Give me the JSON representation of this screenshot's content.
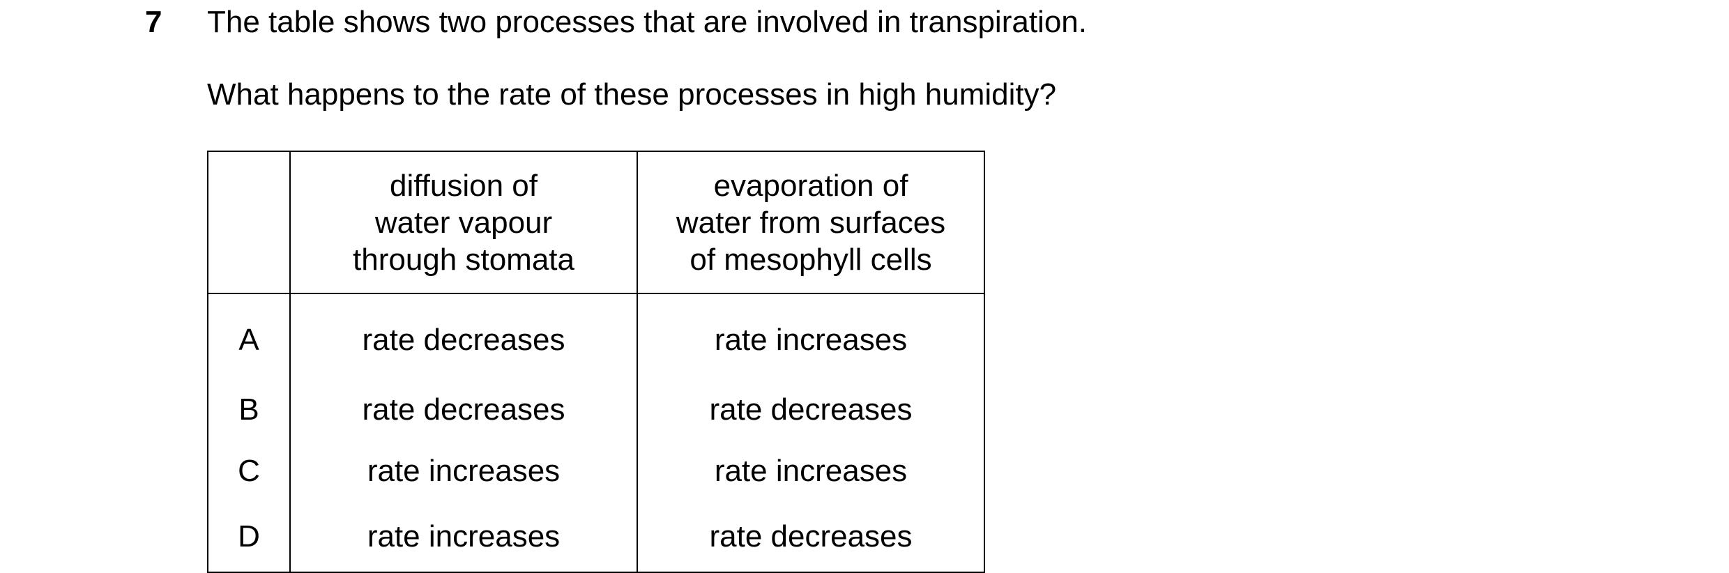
{
  "question": {
    "number": "7",
    "stem": "The table shows two processes that are involved in transpiration.",
    "prompt": "What happens to the rate of these processes in high humidity?"
  },
  "table": {
    "headers": {
      "diffusion": [
        "diffusion of",
        "water vapour",
        "through stomata"
      ],
      "evaporation": [
        "evaporation of",
        "water from surfaces",
        "of mesophyll cells"
      ]
    },
    "rows": [
      {
        "letter": "A",
        "diffusion": "rate decreases",
        "evaporation": "rate increases"
      },
      {
        "letter": "B",
        "diffusion": "rate decreases",
        "evaporation": "rate decreases"
      },
      {
        "letter": "C",
        "diffusion": "rate increases",
        "evaporation": "rate increases"
      },
      {
        "letter": "D",
        "diffusion": "rate increases",
        "evaporation": "rate decreases"
      }
    ]
  }
}
